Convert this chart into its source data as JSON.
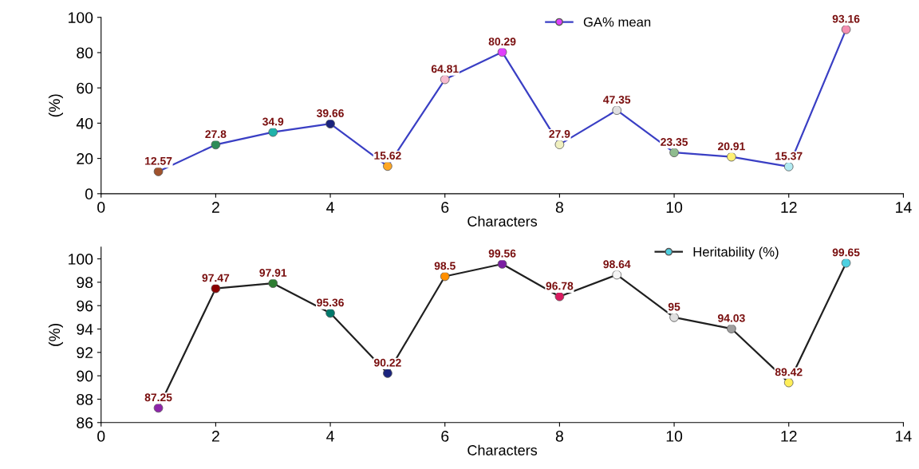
{
  "chart_data": [
    {
      "type": "line",
      "xlabel": "Characters",
      "ylabel": "(%)",
      "x": [
        1,
        2,
        3,
        4,
        5,
        6,
        7,
        8,
        9,
        10,
        11,
        12,
        13
      ],
      "xlim": [
        0,
        14
      ],
      "xticks": [
        0,
        2,
        4,
        6,
        8,
        10,
        12,
        14
      ],
      "ylim": [
        0,
        100
      ],
      "yticks": [
        0,
        20,
        40,
        60,
        80,
        100
      ],
      "marker": "circle",
      "data_labels": true,
      "legend": "top",
      "grid": false,
      "series": [
        {
          "name": "GA% mean",
          "color": "#3a3fc4",
          "colors": [
            "#a0522d",
            "#2e8b57",
            "#20b2aa",
            "#1a237e",
            "#ffa726",
            "#f8bbd0",
            "#e040fb",
            "#f0f0c0",
            "#e0e0e0",
            "#8fbc8f",
            "#fff176",
            "#b2ebf2",
            "#f48fb1"
          ],
          "values": [
            12.57,
            27.8,
            34.9,
            39.66,
            15.62,
            64.81,
            80.29,
            27.9,
            47.35,
            23.35,
            20.91,
            15.37,
            93.16
          ]
        }
      ]
    },
    {
      "type": "line",
      "xlabel": "Characters",
      "ylabel": "(%)",
      "x": [
        1,
        2,
        3,
        4,
        5,
        6,
        7,
        8,
        9,
        10,
        11,
        12,
        13
      ],
      "xlim": [
        0,
        14
      ],
      "xticks": [
        0,
        2,
        4,
        6,
        8,
        10,
        12,
        14
      ],
      "ylim": [
        86,
        101
      ],
      "yticks": [
        86,
        88,
        90,
        92,
        94,
        96,
        98,
        100
      ],
      "marker": "circle",
      "data_labels": true,
      "legend": "top right",
      "grid": false,
      "series": [
        {
          "name": "Heritability (%)",
          "color": "#202020",
          "colors": [
            "#8e24aa",
            "#8b0000",
            "#2e7d32",
            "#00796b",
            "#1a237e",
            "#ff8f00",
            "#7b1fa2",
            "#d81b60",
            "#f5f5f5",
            "#e0e0e0",
            "#9e9e9e",
            "#ffee58",
            "#4dd0e1"
          ],
          "values": [
            87.25,
            97.47,
            97.91,
            95.36,
            90.22,
            98.5,
            99.56,
            96.78,
            98.64,
            95,
            94.03,
            89.42,
            99.65
          ]
        }
      ]
    }
  ]
}
